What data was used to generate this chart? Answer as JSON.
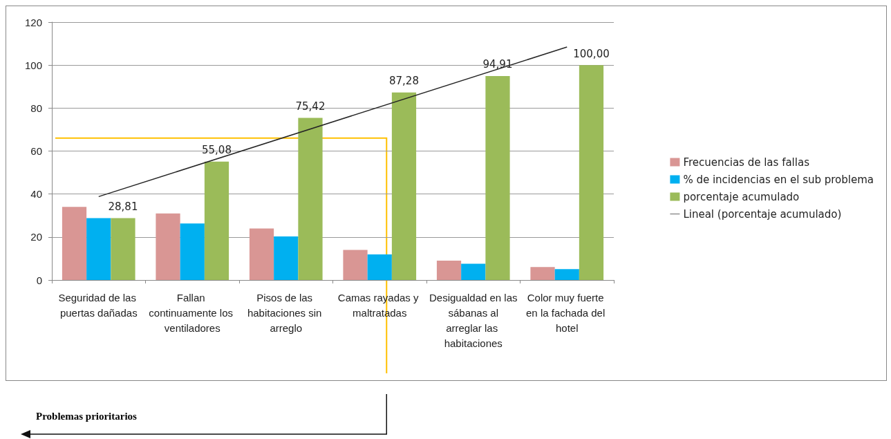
{
  "chart_data": {
    "type": "bar",
    "categories": [
      "Seguridad de las puertas dañadas",
      "Fallan continuamente los ventiladores",
      "Pisos de las habitaciones sin arreglo",
      "Camas rayadas y maltratadas",
      "Desigualdad en las sábanas al arreglar las habitaciones",
      "Color muy fuerte en la fachada del hotel"
    ],
    "series": [
      {
        "name": "Frecuencias de las fallas",
        "color": "#d99694",
        "values": [
          34,
          31,
          24,
          14,
          9,
          6
        ]
      },
      {
        "name": "% de incidencias en el sub problema",
        "color": "#00b0f0",
        "values": [
          28.8,
          26.3,
          20.3,
          11.9,
          7.6,
          5.1
        ]
      },
      {
        "name": "porcentaje acumulado",
        "color": "#9bbb59",
        "values": [
          28.81,
          55.08,
          75.42,
          87.28,
          94.91,
          100
        ],
        "value_labels": [
          "28,81",
          "55,08",
          "75,42",
          "87,28",
          "94,91",
          "100,00"
        ]
      },
      {
        "name": "Lineal (porcentaje acumulado)",
        "type": "line",
        "color": "#262626",
        "x": [
          "Seguridad de las puertas dañadas",
          "Color muy fuerte en la fachada del hotel"
        ],
        "values": [
          38.8,
          108.4
        ]
      }
    ],
    "ylim": [
      0,
      120
    ],
    "yticks": [
      0,
      20,
      40,
      60,
      80,
      100,
      120
    ],
    "grid": "y",
    "legend": "right",
    "marker": "none",
    "ref_lines": [
      {
        "axis": "y",
        "value": 66,
        "color": "#ffc000"
      }
    ],
    "annotations": [
      "Problemas prioritarios"
    ]
  }
}
